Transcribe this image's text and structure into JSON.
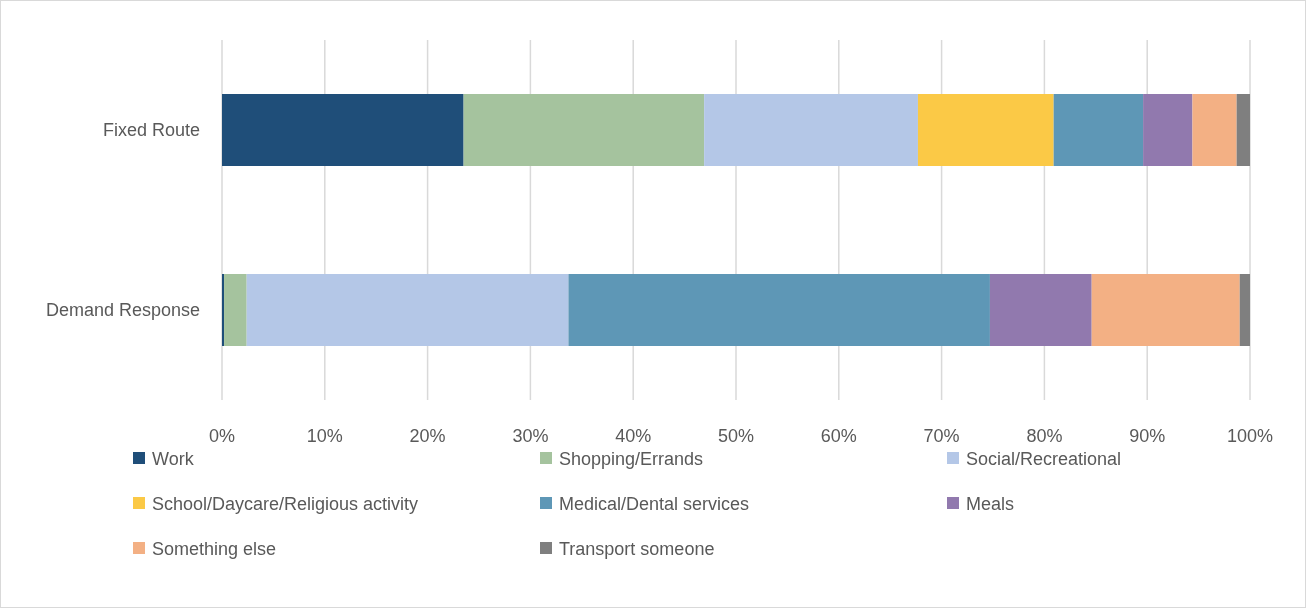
{
  "chart_data": {
    "type": "bar",
    "orientation": "horizontal",
    "stacked": true,
    "categories": [
      "Fixed Route",
      "Demand Response"
    ],
    "series": [
      {
        "name": "Work",
        "color": "#1f4e79",
        "values": [
          23.5,
          0.2
        ]
      },
      {
        "name": "Shopping/Errands",
        "color": "#a5c39e",
        "values": [
          23.4,
          2.2
        ]
      },
      {
        "name": "Social/Recreational",
        "color": "#b4c7e7",
        "values": [
          20.8,
          31.3
        ]
      },
      {
        "name": "School/Daycare/Religious activity",
        "color": "#fbc946",
        "values": [
          13.2,
          0
        ]
      },
      {
        "name": "Medical/Dental services",
        "color": "#5e97b6",
        "values": [
          8.7,
          41.0
        ]
      },
      {
        "name": "Meals",
        "color": "#9179ae",
        "values": [
          4.8,
          9.9
        ]
      },
      {
        "name": "Something else",
        "color": "#f3b084",
        "values": [
          4.3,
          14.4
        ]
      },
      {
        "name": "Transport someone",
        "color": "#7f7f7f",
        "values": [
          1.3,
          1.0
        ]
      }
    ],
    "xlim": [
      0,
      100
    ],
    "xticks": [
      {
        "value": 0,
        "label": "0%"
      },
      {
        "value": 10,
        "label": "10%"
      },
      {
        "value": 20,
        "label": "20%"
      },
      {
        "value": 30,
        "label": "30%"
      },
      {
        "value": 40,
        "label": "40%"
      },
      {
        "value": 50,
        "label": "50%"
      },
      {
        "value": 60,
        "label": "60%"
      },
      {
        "value": 70,
        "label": "70%"
      },
      {
        "value": 80,
        "label": "80%"
      },
      {
        "value": 90,
        "label": "90%"
      },
      {
        "value": 100,
        "label": "100%"
      }
    ],
    "grid": "x",
    "legend": "bottom"
  }
}
